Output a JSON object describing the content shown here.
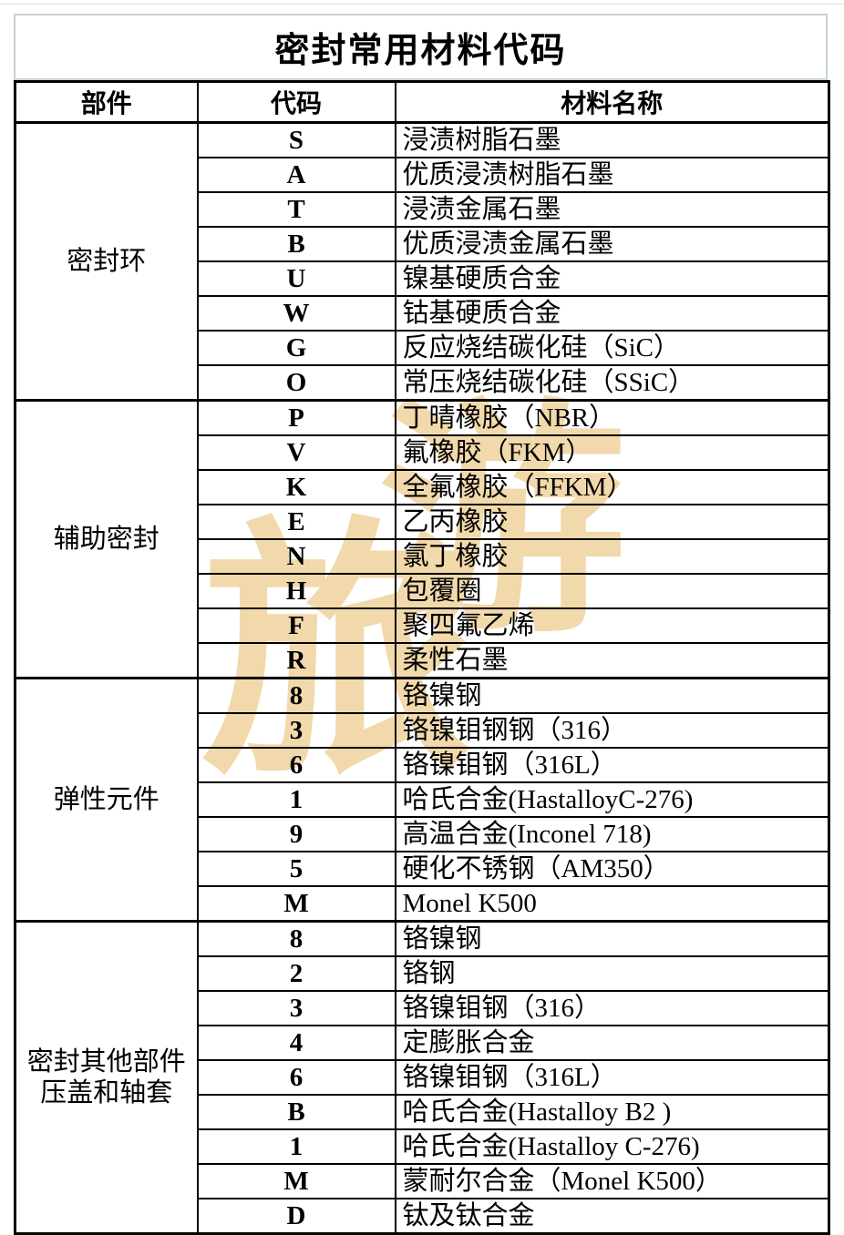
{
  "title": "密封常用材料代码",
  "header": {
    "part": "部件",
    "code": "代码",
    "material": "材料名称"
  },
  "groups": [
    {
      "label": "密封环",
      "rows": [
        {
          "code": "S",
          "material": "浸渍树脂石墨"
        },
        {
          "code": "A",
          "material": "优质浸渍树脂石墨"
        },
        {
          "code": "T",
          "material": "浸渍金属石墨"
        },
        {
          "code": "B",
          "material": "优质浸渍金属石墨"
        },
        {
          "code": "U",
          "material": "镍基硬质合金"
        },
        {
          "code": "W",
          "material": "钴基硬质合金"
        },
        {
          "code": "G",
          "material": "反应烧结碳化硅（SiC）"
        },
        {
          "code": "O",
          "material": "常压烧结碳化硅（SSiC）"
        }
      ]
    },
    {
      "label": "辅助密封",
      "rows": [
        {
          "code": "P",
          "material": "丁晴橡胶（NBR）"
        },
        {
          "code": "V",
          "material": "氟橡胶（FKM）"
        },
        {
          "code": "K",
          "material": "全氟橡胶（FFKM）"
        },
        {
          "code": "E",
          "material": "乙丙橡胶"
        },
        {
          "code": "N",
          "material": "氯丁橡胶"
        },
        {
          "code": "H",
          "material": "包覆圈"
        },
        {
          "code": "F",
          "material": "聚四氟乙烯"
        },
        {
          "code": "R",
          "material": "柔性石墨"
        }
      ]
    },
    {
      "label": "弹性元件",
      "rows": [
        {
          "code": "8",
          "material": "铬镍钢"
        },
        {
          "code": "3",
          "material": "铬镍钼钢钢（316）"
        },
        {
          "code": "6",
          "material": "铬镍钼钢（316L）"
        },
        {
          "code": "1",
          "material": "哈氏合金(HastalloyC-276)"
        },
        {
          "code": "9",
          "material": "高温合金(Inconel 718)"
        },
        {
          "code": "5",
          "material": "硬化不锈钢（AM350）"
        },
        {
          "code": "M",
          "material": "Monel K500"
        }
      ]
    },
    {
      "label": "密封其他部件\n压盖和轴套",
      "rows": [
        {
          "code": "8",
          "material": "铬镍钢"
        },
        {
          "code": "2",
          "material": "铬钢"
        },
        {
          "code": "3",
          "material": "铬镍钼钢（316）"
        },
        {
          "code": "4",
          "material": "定膨胀合金"
        },
        {
          "code": "6",
          "material": "铬镍钼钢（316L）"
        },
        {
          "code": "B",
          "material": "哈氏合金(Hastalloy B2 )"
        },
        {
          "code": "1",
          "material": "哈氏合金(Hastalloy C-276)"
        },
        {
          "code": "M",
          "material": "蒙耐尔合金（Monel K500）"
        },
        {
          "code": "D",
          "material": "钛及钛合金"
        }
      ]
    }
  ],
  "watermark": {
    "chars": [
      "旅",
      "游"
    ],
    "color": "#f2d9ab"
  },
  "colors": {
    "title_box_border": "#c5d5c5",
    "table_border": "#000000",
    "text": "#000000",
    "background": "#ffffff",
    "watermark": "#f2d9ab"
  }
}
